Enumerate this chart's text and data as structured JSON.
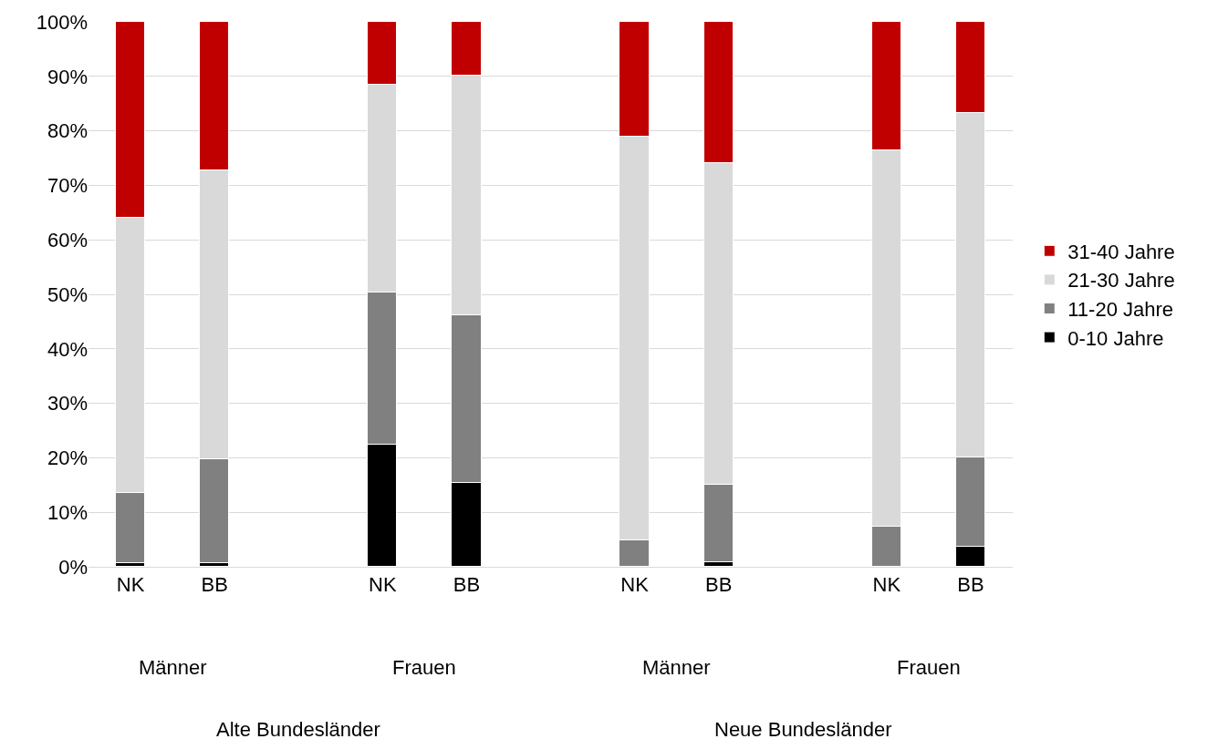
{
  "chart_data": {
    "type": "bar",
    "stacked": true,
    "categories": [
      "NK",
      "BB",
      null,
      "NK",
      "BB",
      null,
      "NK",
      "BB",
      null,
      "NK",
      "BB"
    ],
    "series": [
      {
        "name": "0-10 Jahre",
        "color": "#000000",
        "values": [
          0.7,
          0.7,
          null,
          22.4,
          15.4,
          null,
          0,
          0.8,
          null,
          0,
          3.6
        ]
      },
      {
        "name": "11-20 Jahre",
        "color": "#808080",
        "values": [
          12.9,
          19.1,
          null,
          27.9,
          30.8,
          null,
          4.8,
          14.3,
          null,
          7.4,
          16.4
        ]
      },
      {
        "name": "21-30 Jahre",
        "color": "#d9d9d9",
        "values": [
          50.4,
          52.9,
          null,
          38.2,
          43.9,
          null,
          74.2,
          58.9,
          null,
          69.0,
          63.2
        ]
      },
      {
        "name": "31-40 Jahre",
        "color": "#c00000",
        "values": [
          36.0,
          27.3,
          null,
          11.5,
          9.9,
          null,
          21.0,
          26.0,
          null,
          23.6,
          16.8
        ]
      }
    ],
    "ylim": [
      0,
      100
    ],
    "yticks": [
      {
        "value": 0,
        "label": "0%"
      },
      {
        "value": 10,
        "label": "10%"
      },
      {
        "value": 20,
        "label": "20%"
      },
      {
        "value": 30,
        "label": "30%"
      },
      {
        "value": 40,
        "label": "40%"
      },
      {
        "value": 50,
        "label": "50%"
      },
      {
        "value": 60,
        "label": "60%"
      },
      {
        "value": 70,
        "label": "70%"
      },
      {
        "value": 80,
        "label": "80%"
      },
      {
        "value": 90,
        "label": "90%"
      },
      {
        "value": 100,
        "label": "100%"
      }
    ],
    "grid": "y",
    "legend": "right",
    "annotations": [
      "Männer",
      "Frauen",
      "Männer",
      "Frauen",
      "Alte Bundesländer",
      "Neue Bundesländer"
    ]
  }
}
